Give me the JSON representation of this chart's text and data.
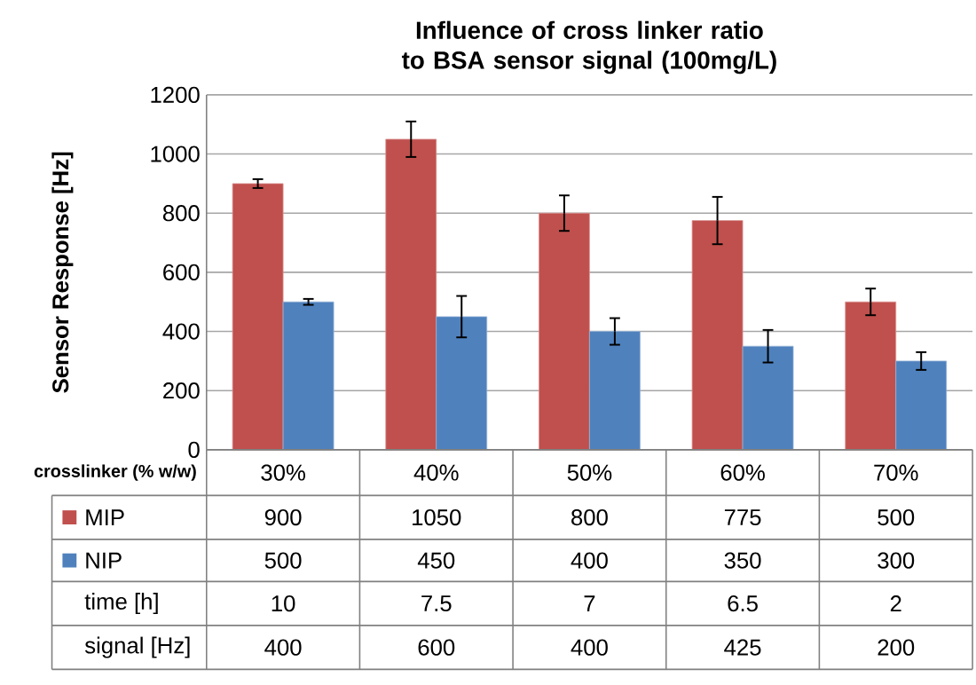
{
  "chart_data": {
    "type": "bar",
    "title": "Influence of cross linker ratio to BSA sensor signal (100mg/L)",
    "ylabel": "Sensor Response [Hz]",
    "xlabel": "crosslinker (% w/w)",
    "categories": [
      "30%",
      "40%",
      "50%",
      "60%",
      "70%"
    ],
    "series": [
      {
        "name": "MIP",
        "color": "#c0504d",
        "values": [
          900,
          1050,
          800,
          775,
          500
        ],
        "errors": [
          15,
          60,
          60,
          80,
          45
        ]
      },
      {
        "name": "NIP",
        "color": "#4f81bd",
        "values": [
          500,
          450,
          400,
          350,
          300
        ],
        "errors": [
          10,
          70,
          45,
          55,
          30
        ]
      }
    ],
    "ylim": [
      0,
      1200
    ],
    "yticks": [
      0,
      200,
      400,
      600,
      800,
      1000,
      1200
    ],
    "grid": "y",
    "legend": "bottom",
    "data_labels": true,
    "annotations": [
      "time [h]",
      "10",
      "7.5",
      "7",
      "6.5",
      "2",
      "signal [Hz]",
      "400",
      "600",
      "400",
      "425",
      "200"
    ]
  }
}
